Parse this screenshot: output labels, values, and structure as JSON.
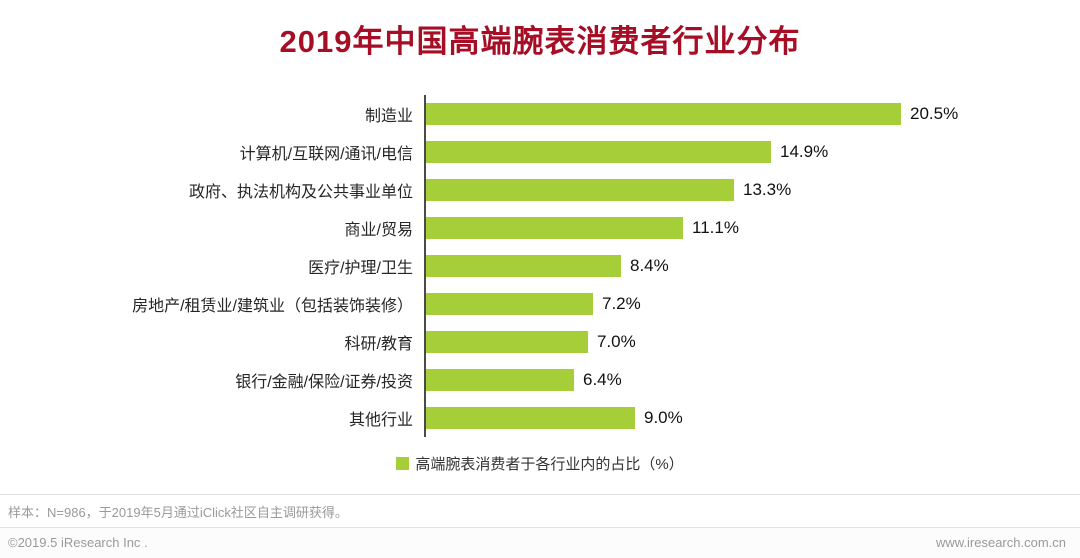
{
  "chart_data": {
    "type": "bar",
    "orientation": "horizontal",
    "title": "2019年中国高端腕表消费者行业分布",
    "categories": [
      "制造业",
      "计算机/互联网/通讯/电信",
      "政府、执法机构及公共事业单位",
      "商业/贸易",
      "医疗/护理/卫生",
      "房地产/租赁业/建筑业（包括装饰装修）",
      "科研/教育",
      "银行/金融/保险/证券/投资",
      "其他行业"
    ],
    "values": [
      20.5,
      14.9,
      13.3,
      11.1,
      8.4,
      7.2,
      7.0,
      6.4,
      9.0
    ],
    "value_suffix": "%",
    "xlim": [
      0,
      22
    ],
    "grid": false,
    "legend": "高端腕表消费者于各行业内的占比（%）",
    "legend_position": "bottom",
    "bar_color": "#a5ce39",
    "title_color": "#a60e26",
    "axis_color": "#4a4a4a"
  },
  "footer": {
    "note": "样本：N=986，于2019年5月通过iClick社区自主调研获得。",
    "copyright": "©2019.5 iResearch Inc .",
    "website": "www.iresearch.com.cn"
  }
}
